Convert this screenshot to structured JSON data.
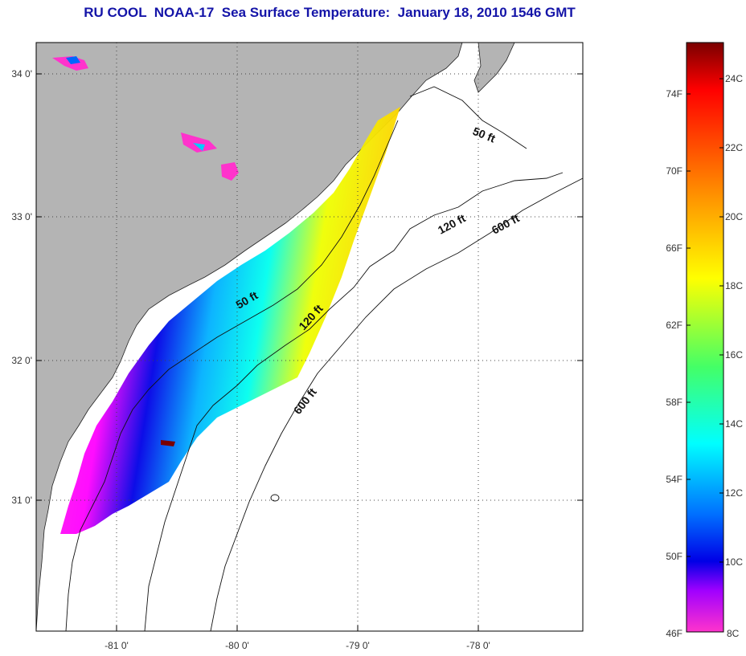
{
  "title": "RU COOL  NOAA-17  Sea Surface Temperature:  January 18, 2010 1546 GMT",
  "map": {
    "lat_labels": [
      "34 0'",
      "33 0'",
      "32 0'",
      "31 0'"
    ],
    "lon_labels": [
      "-81 0'",
      "-80 0'",
      "-79 0'",
      "-78 0'"
    ],
    "land_color": "#b4b4b4",
    "ocean_color": "#ffffff",
    "contours": [
      {
        "name": "50 ft"
      },
      {
        "name": "120 ft"
      },
      {
        "name": "600 ft"
      }
    ],
    "contour_labels": [
      "50 ft",
      "120 ft",
      "600 ft",
      "50 ft",
      "120 ft",
      "600 ft"
    ]
  },
  "colorbar": {
    "fahrenheit_labels": [
      "74F",
      "70F",
      "66F",
      "62F",
      "58F",
      "54F",
      "50F",
      "46F"
    ],
    "celsius_labels": [
      "24C",
      "22C",
      "20C",
      "18C",
      "16C",
      "14C",
      "12C",
      "10C",
      "8C"
    ],
    "colors": [
      "#7a0000",
      "#ff0000",
      "#ff7a00",
      "#ffff00",
      "#00ff66",
      "#00ffff",
      "#0066ff",
      "#0000ff",
      "#ff00ff",
      "#ff33cc"
    ]
  }
}
